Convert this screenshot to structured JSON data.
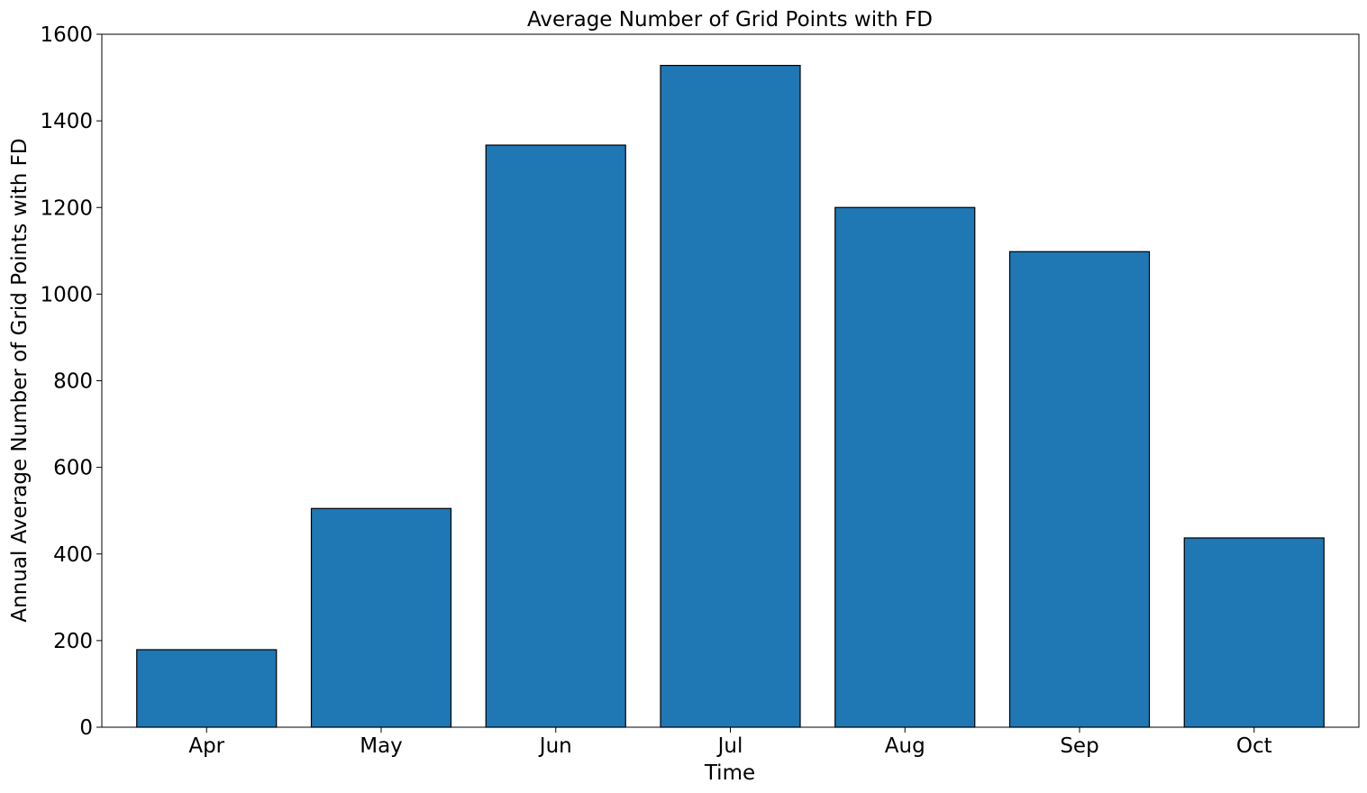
{
  "chart_data": {
    "type": "bar",
    "title": "Average Number of Grid Points with FD",
    "xlabel": "Time",
    "ylabel": "Annual Average Number of Grid Points with FD",
    "categories": [
      "Apr",
      "May",
      "Jun",
      "Jul",
      "Aug",
      "Sep",
      "Oct"
    ],
    "values": [
      179,
      505,
      1344,
      1528,
      1200,
      1098,
      437
    ],
    "ylim": [
      0,
      1600
    ],
    "yticks": [
      0,
      200,
      400,
      600,
      800,
      1000,
      1200,
      1400,
      1600
    ],
    "bar_color": "#1f77b4",
    "edge_color": "#000000",
    "grid": false,
    "legend": false
  }
}
